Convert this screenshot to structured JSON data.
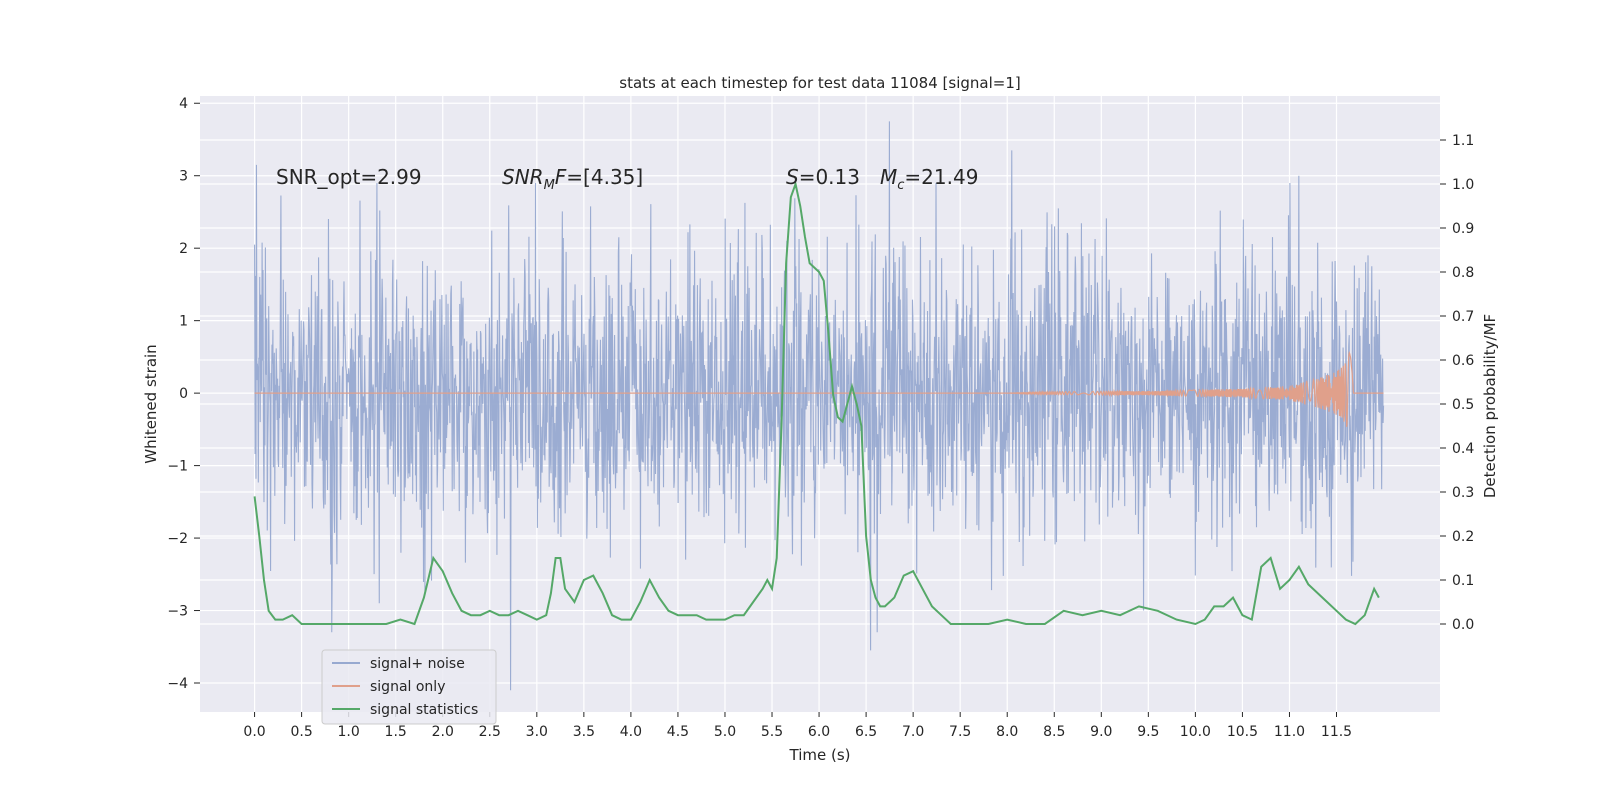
{
  "chart_data": {
    "type": "line",
    "title": "stats at each timestep for test data 11084 [signal=1]",
    "xlabel": "Time (s)",
    "ylabel": "Whitened strain",
    "ylabel_right": "Detection probability/MF",
    "xlim": [
      -0.58,
      12.6
    ],
    "ylim": [
      -4.4,
      4.1
    ],
    "ylim_right": [
      -0.2,
      1.2
    ],
    "x_ticks": [
      0.0,
      0.5,
      1.0,
      1.5,
      2.0,
      2.5,
      3.0,
      3.5,
      4.0,
      4.5,
      5.0,
      5.5,
      6.0,
      6.5,
      7.0,
      7.5,
      8.0,
      8.5,
      9.0,
      9.5,
      10.0,
      10.5,
      11.0,
      11.5
    ],
    "x_tick_labels": [
      "0.0",
      "0.5",
      "1.0",
      "1.5",
      "2.0",
      "2.5",
      "3.0",
      "3.5",
      "4.0",
      "4.5",
      "5.0",
      "5.5",
      "6.0",
      "6.5",
      "7.0",
      "7.5",
      "8.0",
      "8.5",
      "9.0",
      "9.5",
      "10.0",
      "10.5",
      "11.0",
      "11.5"
    ],
    "y_ticks": [
      -4,
      -3,
      -2,
      -1,
      0,
      1,
      2,
      3,
      4
    ],
    "y_tick_labels": [
      "−4",
      "−3",
      "−2",
      "−1",
      "0",
      "1",
      "2",
      "3",
      "4"
    ],
    "y_right_ticks": [
      0.0,
      0.1,
      0.2,
      0.3,
      0.4,
      0.5,
      0.6,
      0.7,
      0.8,
      0.9,
      1.0,
      1.1
    ],
    "y_right_tick_labels": [
      "0.0",
      "0.1",
      "0.2",
      "0.3",
      "0.4",
      "0.5",
      "0.6",
      "0.7",
      "0.8",
      "0.9",
      "1.0",
      "1.1"
    ],
    "grid": true,
    "legend_position": "lower-left",
    "annotations": [
      {
        "text": "SNR_opt=2.99",
        "x": 0.2,
        "y": 3.0
      },
      {
        "text": "SNR_MF=[4.35]",
        "x": 2.6,
        "y": 3.0
      },
      {
        "text": "S=0.13",
        "x": 5.6,
        "y": 3.0
      },
      {
        "text": "M_c=21.49",
        "x": 6.6,
        "y": 3.0
      }
    ],
    "series": [
      {
        "name": "signal+ noise",
        "color": "#97a9d0",
        "axis": "left",
        "x_range": [
          0.0,
          12.0
        ],
        "envelope_note": "dense whitened noise, bulk within ±1.05, peaks up to about ±3",
        "peaks": [
          [
            0.02,
            3.15
          ],
          [
            0.82,
            -3.3
          ],
          [
            1.3,
            2.9
          ],
          [
            2.72,
            -4.1
          ],
          [
            6.55,
            -3.55
          ],
          [
            6.62,
            -3.3
          ],
          [
            6.75,
            3.75
          ],
          [
            8.05,
            3.35
          ],
          [
            9.45,
            -3.0
          ],
          [
            11.1,
            3.0
          ]
        ]
      },
      {
        "name": "signal only",
        "color": "#e0a08b",
        "axis": "left",
        "x_range": [
          0.0,
          12.0
        ],
        "chirp_amplitude": [
          [
            0.0,
            0.0
          ],
          [
            8.0,
            0.0
          ],
          [
            8.5,
            0.02
          ],
          [
            9.5,
            0.03
          ],
          [
            10.5,
            0.06
          ],
          [
            11.0,
            0.1
          ],
          [
            11.3,
            0.2
          ],
          [
            11.5,
            0.3
          ],
          [
            11.6,
            0.45
          ],
          [
            11.65,
            0.6
          ],
          [
            11.68,
            0.0
          ],
          [
            12.0,
            0.0
          ]
        ]
      },
      {
        "name": "signal statistics",
        "color": "#55a868",
        "axis": "right",
        "x": [
          0.0,
          0.05,
          0.1,
          0.15,
          0.22,
          0.3,
          0.4,
          0.5,
          0.6,
          0.8,
          1.0,
          1.2,
          1.4,
          1.55,
          1.7,
          1.8,
          1.9,
          2.0,
          2.1,
          2.2,
          2.3,
          2.4,
          2.5,
          2.6,
          2.7,
          2.8,
          2.9,
          3.0,
          3.1,
          3.15,
          3.2,
          3.25,
          3.3,
          3.4,
          3.5,
          3.6,
          3.7,
          3.8,
          3.9,
          4.0,
          4.1,
          4.2,
          4.3,
          4.4,
          4.5,
          4.6,
          4.7,
          4.8,
          4.9,
          5.0,
          5.1,
          5.2,
          5.3,
          5.4,
          5.45,
          5.5,
          5.55,
          5.6,
          5.65,
          5.7,
          5.75,
          5.8,
          5.85,
          5.9,
          5.95,
          6.0,
          6.05,
          6.1,
          6.15,
          6.2,
          6.25,
          6.3,
          6.35,
          6.4,
          6.45,
          6.5,
          6.55,
          6.6,
          6.65,
          6.7,
          6.8,
          6.9,
          7.0,
          7.1,
          7.2,
          7.3,
          7.4,
          7.5,
          7.6,
          7.8,
          8.0,
          8.2,
          8.4,
          8.6,
          8.8,
          9.0,
          9.2,
          9.4,
          9.6,
          9.8,
          10.0,
          10.1,
          10.2,
          10.3,
          10.4,
          10.5,
          10.6,
          10.7,
          10.8,
          10.9,
          11.0,
          11.1,
          11.2,
          11.4,
          11.5,
          11.6,
          11.7,
          11.8,
          11.9,
          11.95
        ],
        "values": [
          0.29,
          0.2,
          0.1,
          0.03,
          0.01,
          0.01,
          0.02,
          0.0,
          0.0,
          0.0,
          0.0,
          0.0,
          0.0,
          0.01,
          0.0,
          0.06,
          0.15,
          0.12,
          0.07,
          0.03,
          0.02,
          0.02,
          0.03,
          0.02,
          0.02,
          0.03,
          0.02,
          0.01,
          0.02,
          0.07,
          0.15,
          0.15,
          0.08,
          0.05,
          0.1,
          0.11,
          0.07,
          0.02,
          0.01,
          0.01,
          0.05,
          0.1,
          0.06,
          0.03,
          0.02,
          0.02,
          0.02,
          0.01,
          0.01,
          0.01,
          0.02,
          0.02,
          0.05,
          0.08,
          0.1,
          0.08,
          0.15,
          0.45,
          0.82,
          0.97,
          1.0,
          0.95,
          0.88,
          0.82,
          0.81,
          0.8,
          0.78,
          0.66,
          0.52,
          0.47,
          0.46,
          0.5,
          0.54,
          0.5,
          0.45,
          0.2,
          0.1,
          0.06,
          0.04,
          0.04,
          0.06,
          0.11,
          0.12,
          0.08,
          0.04,
          0.02,
          0.0,
          0.0,
          0.0,
          0.0,
          0.01,
          0.0,
          0.0,
          0.03,
          0.02,
          0.03,
          0.02,
          0.04,
          0.03,
          0.01,
          0.0,
          0.01,
          0.04,
          0.04,
          0.06,
          0.02,
          0.01,
          0.13,
          0.15,
          0.08,
          0.1,
          0.13,
          0.09,
          0.05,
          0.03,
          0.01,
          0.0,
          0.02,
          0.08,
          0.06
        ]
      }
    ]
  }
}
